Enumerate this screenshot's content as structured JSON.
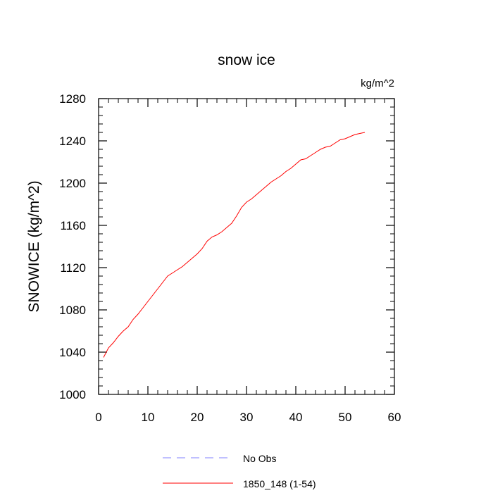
{
  "chart_data": {
    "type": "line",
    "title": "snow ice",
    "units": "kg/m^2",
    "ylabel": "SNOWICE  (kg/m^2)",
    "xlabel": "",
    "xlim": [
      0,
      60
    ],
    "ylim": [
      1000,
      1280
    ],
    "xticks": [
      0,
      10,
      20,
      30,
      40,
      50,
      60
    ],
    "yticks": [
      1000,
      1040,
      1080,
      1120,
      1160,
      1200,
      1240,
      1280
    ],
    "grid": false,
    "legend_position": "bottom",
    "series": [
      {
        "name": "No Obs",
        "color": "#8080ff",
        "dash": "dashed",
        "x": [],
        "y": []
      },
      {
        "name": "1850_148 (1-54)",
        "color": "#ff0000",
        "dash": "solid",
        "x": [
          1,
          2,
          3,
          4,
          5,
          6,
          7,
          8,
          9,
          10,
          11,
          12,
          13,
          14,
          15,
          16,
          17,
          18,
          19,
          20,
          21,
          22,
          23,
          24,
          25,
          26,
          27,
          28,
          29,
          30,
          31,
          32,
          33,
          34,
          35,
          36,
          37,
          38,
          39,
          40,
          41,
          42,
          43,
          44,
          45,
          46,
          47,
          48,
          49,
          50,
          51,
          52,
          53,
          54
        ],
        "y": [
          1035,
          1044,
          1049,
          1055,
          1060,
          1064,
          1071,
          1076,
          1082,
          1088,
          1094,
          1100,
          1106,
          1112,
          1115,
          1118,
          1121,
          1125,
          1129,
          1133,
          1138,
          1145,
          1149,
          1151,
          1154,
          1158,
          1162,
          1169,
          1177,
          1182,
          1185,
          1189,
          1193,
          1197,
          1201,
          1204,
          1207,
          1211,
          1214,
          1218,
          1222,
          1223,
          1226,
          1229,
          1232,
          1234,
          1235,
          1238,
          1241,
          1242,
          1244,
          1246,
          1247,
          1248
        ]
      }
    ]
  }
}
